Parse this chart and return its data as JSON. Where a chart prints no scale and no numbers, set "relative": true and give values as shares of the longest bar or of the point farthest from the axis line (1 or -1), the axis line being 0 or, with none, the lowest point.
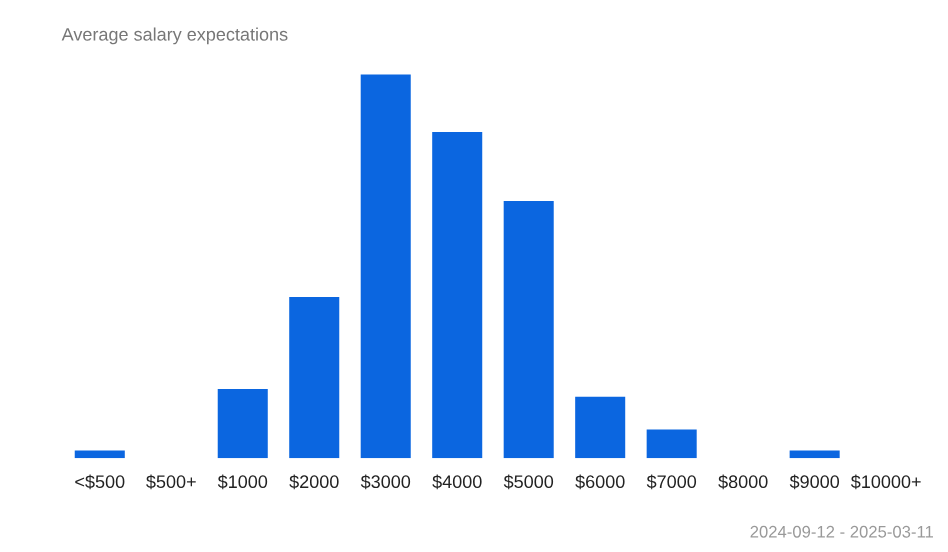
{
  "chart_data": {
    "type": "bar",
    "title": "Average salary expectations",
    "relative": true,
    "categories": [
      "<$500",
      "$500+",
      "$1000",
      "$2000",
      "$3000",
      "$4000",
      "$5000",
      "$6000",
      "$7000",
      "$8000",
      "$9000",
      "$10000+"
    ],
    "values": [
      0.02,
      0,
      0.18,
      0.42,
      1,
      0.85,
      0.67,
      0.16,
      0.075,
      0,
      0.02,
      0
    ],
    "color": "#0b66e0",
    "grid": false,
    "annotations": [
      "2024-09-12 - 2025-03-11"
    ]
  }
}
